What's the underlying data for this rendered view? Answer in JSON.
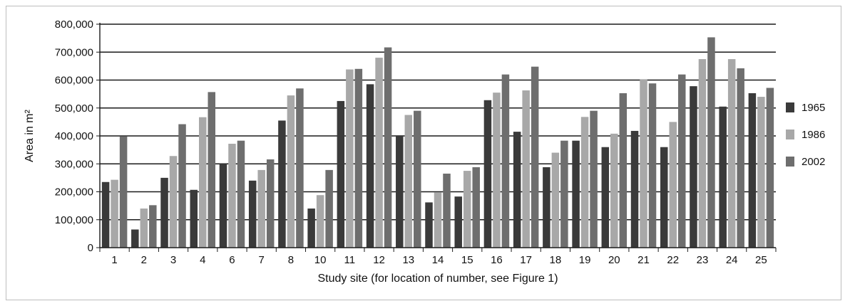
{
  "chart_data": {
    "type": "bar",
    "title": "",
    "xlabel": "Study site (for location of number, see Figure 1)",
    "ylabel": "Area in m²",
    "ylim": [
      0,
      800000
    ],
    "yticks": [
      0,
      100000,
      200000,
      300000,
      400000,
      500000,
      600000,
      700000,
      800000
    ],
    "ytick_labels": [
      "0",
      "100,000",
      "200,000",
      "300,000",
      "400,000",
      "500,000",
      "600,000",
      "700,000",
      "800,000"
    ],
    "grid": "horizontal",
    "legend_position": "right",
    "categories": [
      "1",
      "2",
      "3",
      "4",
      "6",
      "7",
      "8",
      "10",
      "11",
      "12",
      "13",
      "14",
      "15",
      "16",
      "17",
      "18",
      "19",
      "20",
      "21",
      "22",
      "23",
      "24",
      "25"
    ],
    "series": [
      {
        "name": "1965",
        "color": "#3a3a3a",
        "values": [
          235000,
          65000,
          250000,
          207000,
          300000,
          240000,
          455000,
          140000,
          525000,
          585000,
          402000,
          162000,
          183000,
          528000,
          415000,
          288000,
          383000,
          360000,
          418000,
          360000,
          578000,
          505000,
          553000
        ]
      },
      {
        "name": "1986",
        "color": "#a8a8a8",
        "values": [
          243000,
          140000,
          328000,
          467000,
          372000,
          278000,
          545000,
          188000,
          638000,
          680000,
          475000,
          198000,
          275000,
          555000,
          563000,
          340000,
          468000,
          408000,
          603000,
          450000,
          675000,
          675000,
          540000
        ]
      },
      {
        "name": "2002",
        "color": "#6e6e6e",
        "values": [
          398000,
          152000,
          442000,
          557000,
          383000,
          316000,
          570000,
          278000,
          640000,
          717000,
          490000,
          265000,
          288000,
          620000,
          648000,
          383000,
          490000,
          553000,
          588000,
          620000,
          753000,
          642000,
          572000
        ]
      }
    ]
  }
}
